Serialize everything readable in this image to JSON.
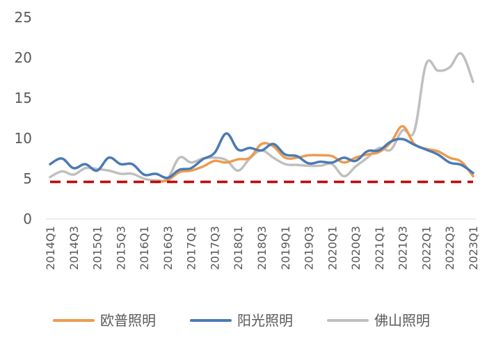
{
  "chart_data": {
    "type": "line",
    "title": "",
    "xlabel": "",
    "ylabel": "",
    "ylim": [
      0,
      25
    ],
    "yticks": [
      "0",
      "5",
      "10",
      "15",
      "20",
      "25"
    ],
    "grid": false,
    "legend_position": "bottom",
    "x": [
      "2014Q1",
      "2014Q2",
      "2014Q3",
      "2014Q4",
      "2015Q1",
      "2015Q2",
      "2015Q3",
      "2015Q4",
      "2016Q1",
      "2016Q2",
      "2016Q3",
      "2016Q4",
      "2017Q1",
      "2017Q2",
      "2017Q3",
      "2017Q4",
      "2018Q1",
      "2018Q2",
      "2018Q3",
      "2018Q4",
      "2019Q1",
      "2019Q2",
      "2019Q3",
      "2019Q4",
      "2020Q1",
      "2020Q2",
      "2020Q3",
      "2020Q4",
      "2021Q1",
      "2021Q2",
      "2021Q3",
      "2021Q4",
      "2022Q1",
      "2022Q2",
      "2022Q3",
      "2022Q4",
      "2023Q1"
    ],
    "x_tick_labels": [
      "2014Q1",
      "2014Q3",
      "2015Q1",
      "2015Q3",
      "2016Q1",
      "2016Q3",
      "2017Q1",
      "2017Q3",
      "2018Q1",
      "2018Q3",
      "2019Q1",
      "2019Q3",
      "2020Q1",
      "2020Q3",
      "2021Q1",
      "2021Q3",
      "2022Q1",
      "2022Q3",
      "2023Q1"
    ],
    "series": [
      {
        "name": "欧普照明",
        "color": "#ED9B4F",
        "values": [
          null,
          null,
          null,
          null,
          null,
          null,
          null,
          null,
          null,
          4.6,
          4.8,
          5.8,
          6.0,
          6.5,
          7.2,
          7.0,
          7.4,
          7.6,
          9.3,
          9.0,
          7.6,
          7.6,
          7.9,
          7.9,
          7.8,
          7.0,
          7.6,
          8.0,
          8.3,
          9.5,
          11.5,
          9.3,
          8.7,
          8.4,
          7.6,
          7.1,
          5.3
        ]
      },
      {
        "name": "阳光照明",
        "color": "#4A7AB5",
        "values": [
          6.8,
          7.5,
          6.3,
          6.8,
          6.0,
          7.6,
          6.8,
          6.8,
          5.5,
          5.6,
          5.1,
          6.1,
          6.3,
          7.4,
          8.2,
          10.6,
          8.6,
          8.8,
          8.5,
          9.3,
          8.0,
          7.8,
          6.9,
          7.1,
          7.0,
          7.6,
          7.2,
          8.4,
          8.5,
          9.6,
          9.9,
          9.2,
          8.6,
          8.0,
          7.0,
          6.7,
          5.7
        ]
      },
      {
        "name": "佛山照明",
        "color": "#BFBFBF",
        "values": [
          5.2,
          5.9,
          5.5,
          6.3,
          6.2,
          6.0,
          5.6,
          5.6,
          5.0,
          4.8,
          5.0,
          7.6,
          7.0,
          7.5,
          7.6,
          7.3,
          6.0,
          7.5,
          8.5,
          7.6,
          6.8,
          6.7,
          6.6,
          6.6,
          6.8,
          5.3,
          6.5,
          7.6,
          8.8,
          8.6,
          11.0,
          10.9,
          19.2,
          18.4,
          18.8,
          20.5,
          17.0
        ]
      },
      {
        "name": "",
        "color": "#C00000",
        "style": "dashed",
        "values": [
          4.6,
          4.6,
          4.6,
          4.6,
          4.6,
          4.6,
          4.6,
          4.6,
          4.6,
          4.6,
          4.6,
          4.6,
          4.6,
          4.6,
          4.6,
          4.6,
          4.6,
          4.6,
          4.6,
          4.6,
          4.6,
          4.6,
          4.6,
          4.6,
          4.6,
          4.6,
          4.6,
          4.6,
          4.6,
          4.6,
          4.6,
          4.6,
          4.6,
          4.6,
          4.6,
          4.6,
          4.6
        ]
      }
    ],
    "legend": [
      "欧普照明",
      "阳光照明",
      "佛山照明"
    ]
  }
}
